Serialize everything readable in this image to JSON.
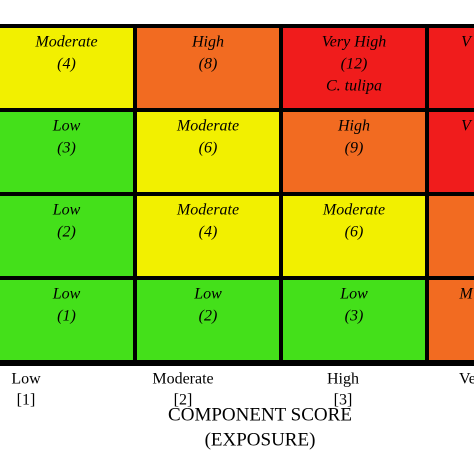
{
  "grid": {
    "rows": [
      [
        {
          "lines": [
            "Moderate",
            "(4)"
          ],
          "color": "#f2f000"
        },
        {
          "lines": [
            "High",
            "(8)"
          ],
          "color": "#f26b21"
        },
        {
          "lines": [
            "Very High",
            "(12)",
            "C. tulipa"
          ],
          "color": "#f01c1c"
        },
        {
          "lines": [
            "V"
          ],
          "color": "#f01c1c"
        }
      ],
      [
        {
          "lines": [
            "Low",
            "(3)"
          ],
          "color": "#44e01a"
        },
        {
          "lines": [
            "Moderate",
            "(6)"
          ],
          "color": "#f2f000"
        },
        {
          "lines": [
            "High",
            "(9)"
          ],
          "color": "#f26b21"
        },
        {
          "lines": [
            "V"
          ],
          "color": "#f01c1c"
        }
      ],
      [
        {
          "lines": [
            "Low",
            "(2)"
          ],
          "color": "#44e01a"
        },
        {
          "lines": [
            "Moderate",
            "(4)"
          ],
          "color": "#f2f000"
        },
        {
          "lines": [
            "Moderate",
            "(6)"
          ],
          "color": "#f2f000"
        },
        {
          "lines": [],
          "color": "#f26b21"
        }
      ],
      [
        {
          "lines": [
            "Low",
            "(1)"
          ],
          "color": "#44e01a"
        },
        {
          "lines": [
            "Low",
            "(2)"
          ],
          "color": "#44e01a"
        },
        {
          "lines": [
            "Low",
            "(3)"
          ],
          "color": "#44e01a"
        },
        {
          "lines": [
            "M"
          ],
          "color": "#f26b21"
        }
      ]
    ]
  },
  "x_axis": {
    "labels": [
      [
        "Low",
        "[1]"
      ],
      [
        "Moderate",
        "[2]"
      ],
      [
        "High",
        "[3]"
      ],
      [
        "Ve"
      ]
    ],
    "title": "COMPONENT SCORE",
    "subtitle": "(EXPOSURE)"
  }
}
